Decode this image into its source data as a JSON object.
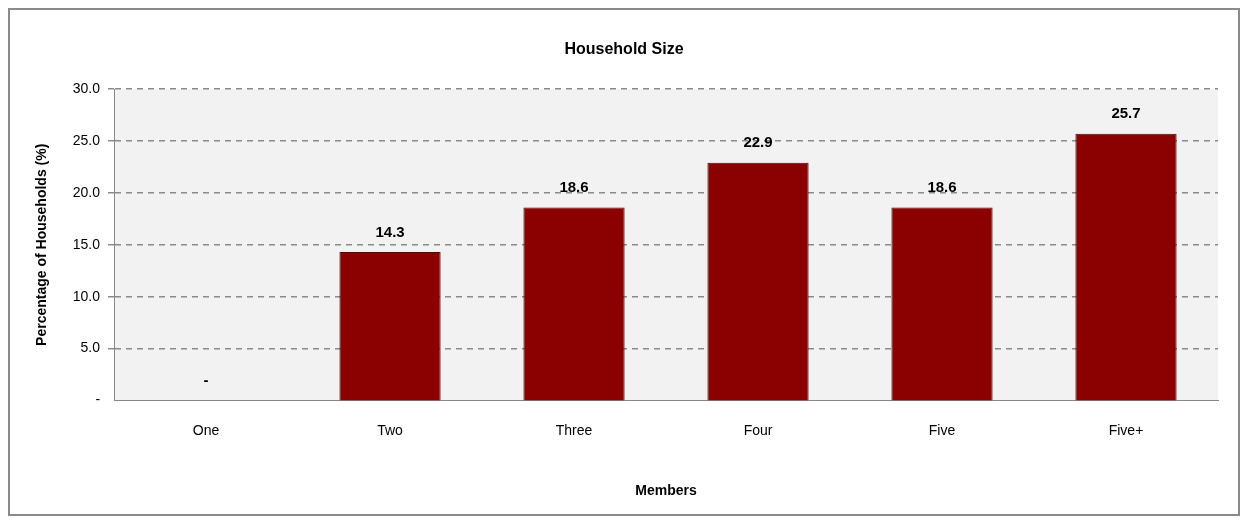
{
  "chart_data": {
    "type": "bar",
    "title": "Household Size",
    "xlabel": "Members",
    "ylabel": "Percentage of Households (%)",
    "categories": [
      "One",
      "Two",
      "Three",
      "Four",
      "Five",
      "Five+"
    ],
    "values": [
      0,
      14.3,
      18.6,
      22.9,
      18.6,
      25.7
    ],
    "value_labels": [
      "-",
      "14.3",
      "18.6",
      "22.9",
      "18.6",
      "25.7"
    ],
    "color": "#8b0000",
    "ylim": [
      0,
      30
    ],
    "yticks": [
      {
        "value": 0,
        "label": "-"
      },
      {
        "value": 5,
        "label": "5.0"
      },
      {
        "value": 10,
        "label": "10.0"
      },
      {
        "value": 15,
        "label": "15.0"
      },
      {
        "value": 20,
        "label": "20.0"
      },
      {
        "value": 25,
        "label": "25.0"
      },
      {
        "value": 30,
        "label": "30.0"
      }
    ],
    "grid": "y",
    "legend": false
  }
}
